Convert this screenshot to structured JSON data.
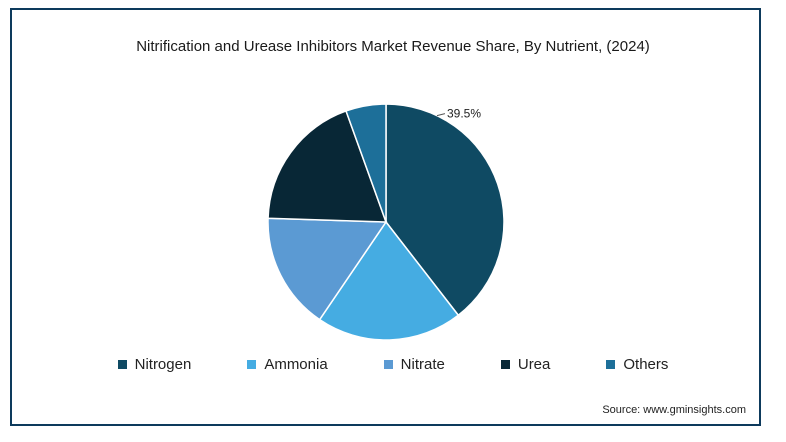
{
  "chart_data": {
    "type": "pie",
    "title": "Nitrification and Urease Inhibitors Market Revenue Share, By Nutrient, (2024)",
    "categories": [
      "Nitrogen",
      "Ammonia",
      "Nitrate",
      "Urea",
      "Others"
    ],
    "values": [
      39.5,
      20,
      16,
      19,
      5.5
    ],
    "colors": [
      "#0f4a63",
      "#45ace2",
      "#5b9ad3",
      "#082736",
      "#1d6f99"
    ],
    "data_labels": [
      "39.5%",
      "",
      "",
      "",
      ""
    ],
    "legend_placement": "bottom"
  },
  "source": "Source: www.gminsights.com"
}
